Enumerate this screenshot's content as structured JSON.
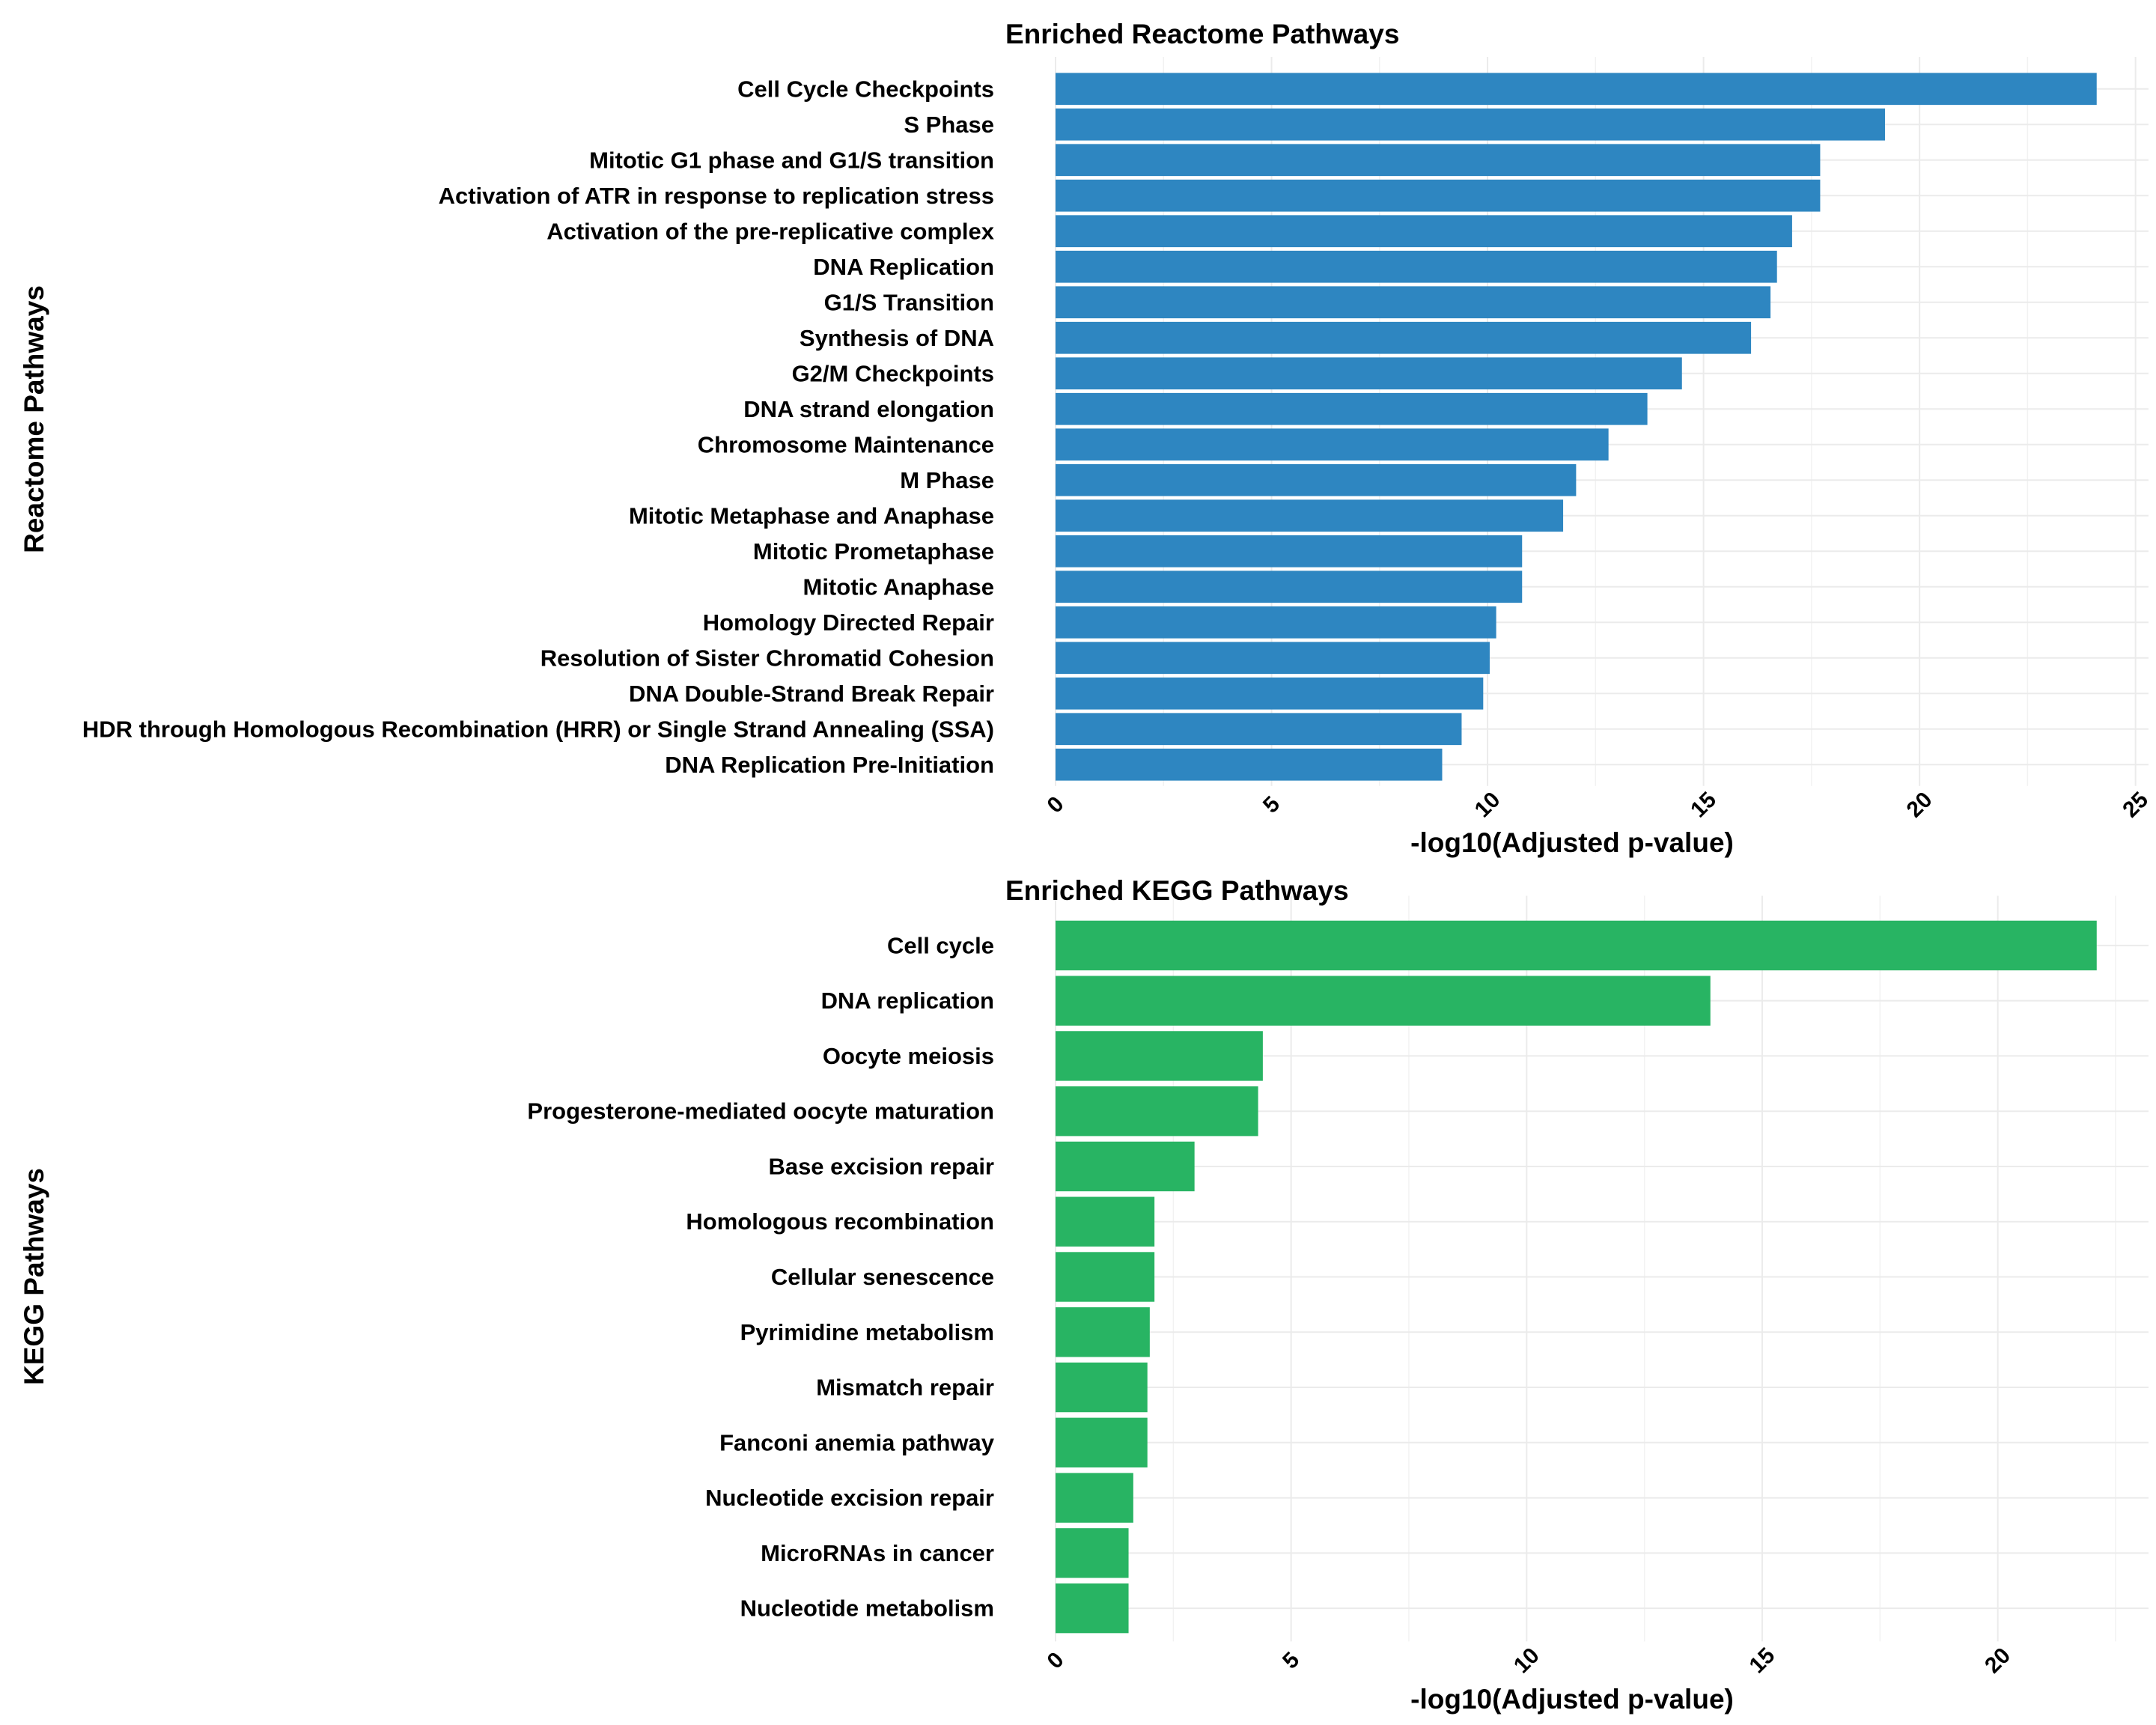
{
  "chart_data": [
    {
      "type": "bar",
      "orientation": "horizontal",
      "title": "Enriched Reactome Pathways",
      "xlabel": "-log10(Adjusted p-value)",
      "ylabel": "Reactome Pathways",
      "xlim": [
        0,
        25.3
      ],
      "xticks": [
        0,
        5,
        10,
        15,
        20,
        25
      ],
      "bar_color": "#2E86C1",
      "grid": true,
      "legend": "none",
      "categories": [
        "Cell Cycle Checkpoints",
        "S Phase",
        "Mitotic G1 phase and G1/S transition",
        "Activation of ATR in response to replication stress",
        "Activation of the pre-replicative complex",
        "DNA Replication",
        "G1/S Transition",
        "Synthesis of DNA",
        "G2/M Checkpoints",
        "DNA strand elongation",
        "Chromosome Maintenance",
        "M Phase",
        "Mitotic Metaphase and Anaphase",
        "Mitotic Prometaphase",
        "Mitotic Anaphase",
        "Homology Directed Repair",
        "Resolution of Sister Chromatid Cohesion",
        "DNA Double-Strand Break Repair",
        "HDR through Homologous Recombination (HRR) or Single Strand Annealing (SSA)",
        "DNA Replication Pre-Initiation"
      ],
      "values": [
        24.1,
        19.2,
        17.7,
        17.7,
        17.05,
        16.7,
        16.55,
        16.1,
        14.5,
        13.7,
        12.8,
        12.05,
        11.75,
        10.8,
        10.8,
        10.2,
        10.05,
        9.9,
        9.4,
        8.95
      ]
    },
    {
      "type": "bar",
      "orientation": "horizontal",
      "title": "Enriched KEGG Pathways",
      "xlabel": "-log10(Adjusted p-value)",
      "ylabel": "KEGG Pathways",
      "xlim": [
        0,
        23.2
      ],
      "xticks": [
        0,
        5,
        10,
        15,
        20
      ],
      "bar_color": "#28B463",
      "grid": true,
      "legend": "none",
      "categories": [
        "Cell cycle",
        "DNA replication",
        "Oocyte meiosis",
        "Progesterone-mediated oocyte maturation",
        "Base excision repair",
        "Homologous recombination",
        "Cellular senescence",
        "Pyrimidine metabolism",
        "Mismatch repair",
        "Fanconi anemia pathway",
        "Nucleotide excision repair",
        "MicroRNAs in cancer",
        "Nucleotide metabolism"
      ],
      "values": [
        22.1,
        13.9,
        4.4,
        4.3,
        2.95,
        2.1,
        2.1,
        2.0,
        1.95,
        1.95,
        1.65,
        1.55,
        1.55
      ]
    }
  ]
}
